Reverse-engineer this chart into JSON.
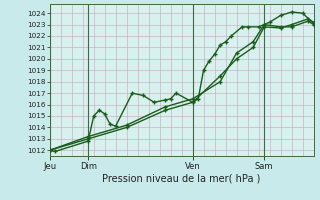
{
  "fig_bg": "#c8eaea",
  "plot_bg": "#d8f0ee",
  "grid_color": "#c0a8b8",
  "line_color": "#1a5c1a",
  "marker_color": "#1a5c1a",
  "ylabel_values": [
    1012,
    1013,
    1014,
    1015,
    1016,
    1017,
    1018,
    1019,
    1020,
    1021,
    1022,
    1023,
    1024
  ],
  "ylim": [
    1011.5,
    1024.8
  ],
  "xlabel": "Pression niveau de la mer( hPa )",
  "xtick_labels": [
    "Jeu",
    "Dim",
    "Ven",
    "Sam"
  ],
  "xtick_positions": [
    0.0,
    0.146,
    0.542,
    0.813
  ],
  "vline_positions": [
    0.0,
    0.146,
    0.542,
    0.813
  ],
  "series1_x": [
    0.0,
    0.021,
    0.146,
    0.167,
    0.188,
    0.208,
    0.229,
    0.25,
    0.313,
    0.354,
    0.396,
    0.438,
    0.458,
    0.479,
    0.542,
    0.563,
    0.583,
    0.604,
    0.625,
    0.646,
    0.667,
    0.688,
    0.729,
    0.75,
    0.792,
    0.833,
    0.875,
    0.917,
    0.958,
    1.0
  ],
  "series1_y": [
    1012.0,
    1011.9,
    1012.8,
    1015.0,
    1015.5,
    1015.2,
    1014.3,
    1014.1,
    1017.0,
    1016.8,
    1016.2,
    1016.4,
    1016.5,
    1017.0,
    1016.2,
    1016.5,
    1019.0,
    1019.8,
    1020.4,
    1021.2,
    1021.5,
    1022.0,
    1022.8,
    1022.8,
    1022.8,
    1023.2,
    1023.8,
    1024.1,
    1024.0,
    1023.1
  ],
  "series2_x": [
    0.0,
    0.146,
    0.292,
    0.438,
    0.542,
    0.646,
    0.708,
    0.771,
    0.813,
    0.875,
    0.917,
    0.979,
    1.0
  ],
  "series2_y": [
    1012.0,
    1013.0,
    1014.0,
    1015.5,
    1016.2,
    1018.5,
    1020.0,
    1021.0,
    1022.8,
    1022.7,
    1023.0,
    1023.5,
    1023.2
  ],
  "series3_x": [
    0.0,
    0.146,
    0.292,
    0.438,
    0.542,
    0.646,
    0.708,
    0.771,
    0.813,
    0.875,
    0.917,
    0.979,
    1.0
  ],
  "series3_y": [
    1012.0,
    1013.2,
    1014.2,
    1015.8,
    1016.5,
    1018.0,
    1020.5,
    1021.5,
    1023.0,
    1022.8,
    1022.8,
    1023.3,
    1023.0
  ]
}
